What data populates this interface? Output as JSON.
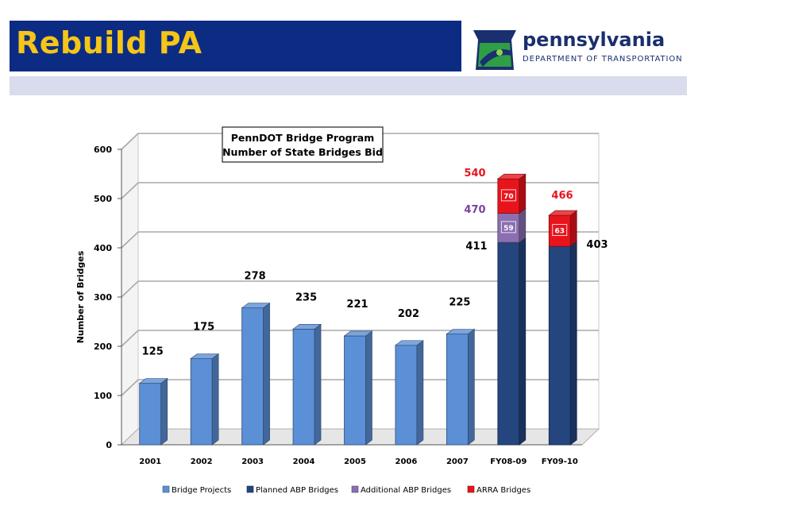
{
  "header": {
    "title": "Rebuild PA",
    "logo_name": "pennsylvania",
    "logo_dept": "DEPARTMENT OF TRANSPORTATION"
  },
  "colors": {
    "banner": "#0c2c84",
    "title": "#f5c518",
    "bridge_projects": "#5b8fd6",
    "planned_abp": "#24457e",
    "additional_abp": "#8b6fb0",
    "arra": "#e8141c",
    "label_red": "#e8141c",
    "label_purple": "#7b3fa0"
  },
  "chart_data": {
    "type": "bar",
    "title": "PennDOT Bridge Program\nNumber of State Bridges Bid",
    "title_lines": [
      "PennDOT Bridge Program",
      "Number of State Bridges Bid"
    ],
    "ylabel": "Number of Bridges",
    "xlabel": "",
    "ylim": [
      0,
      600
    ],
    "yticks": [
      0,
      100,
      200,
      300,
      400,
      500,
      600
    ],
    "grid": true,
    "legend_position": "bottom",
    "stacked": true,
    "categories": [
      "2001",
      "2002",
      "2003",
      "2004",
      "2005",
      "2006",
      "2007",
      "FY08-09",
      "FY09-10"
    ],
    "series": [
      {
        "name": "Bridge Projects",
        "values": [
          125,
          175,
          278,
          235,
          221,
          202,
          225,
          0,
          0
        ]
      },
      {
        "name": "Planned ABP Bridges",
        "values": [
          0,
          0,
          0,
          0,
          0,
          0,
          0,
          411,
          403
        ]
      },
      {
        "name": "Additional ABP Bridges",
        "values": [
          0,
          0,
          0,
          0,
          0,
          0,
          0,
          59,
          0
        ]
      },
      {
        "name": "ARRA Bridges",
        "values": [
          0,
          0,
          0,
          0,
          0,
          0,
          0,
          70,
          63
        ]
      }
    ],
    "annotations": [
      {
        "category": "FY08-09",
        "text": "540",
        "color": "red"
      },
      {
        "category": "FY08-09",
        "text": "470",
        "color": "purple"
      },
      {
        "category": "FY08-09",
        "text": "411",
        "color": "black"
      },
      {
        "category": "FY09-10",
        "text": "466",
        "color": "red"
      },
      {
        "category": "FY09-10",
        "text": "403",
        "color": "black"
      }
    ]
  }
}
